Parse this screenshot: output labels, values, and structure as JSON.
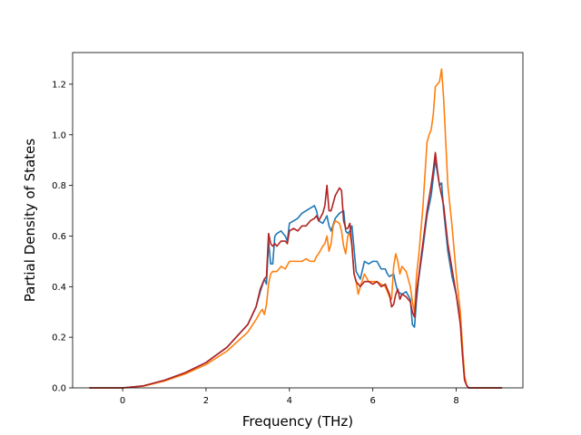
{
  "chart_data": {
    "type": "line",
    "xlabel": "Frequency (THz)",
    "ylabel": "Partial Density of States",
    "xlim": [
      -1.2,
      9.6
    ],
    "ylim": [
      0.0,
      1.325
    ],
    "x_ticks": [
      0,
      2,
      4,
      6,
      8
    ],
    "x_tick_labels": [
      "0",
      "2",
      "4",
      "6",
      "8"
    ],
    "y_ticks": [
      0.0,
      0.2,
      0.4,
      0.6,
      0.8,
      1.0,
      1.2
    ],
    "y_tick_labels": [
      "0.0",
      "0.2",
      "0.4",
      "0.6",
      "0.8",
      "1.0",
      "1.2"
    ],
    "grid": false,
    "legend": "none",
    "series": [
      {
        "color": "#1f77b4",
        "points": [
          [
            -0.8,
            0
          ],
          [
            0,
            0
          ],
          [
            0.5,
            0.008
          ],
          [
            1.0,
            0.03
          ],
          [
            1.5,
            0.06
          ],
          [
            2.0,
            0.1
          ],
          [
            2.5,
            0.16
          ],
          [
            3.0,
            0.25
          ],
          [
            3.2,
            0.32
          ],
          [
            3.3,
            0.38
          ],
          [
            3.4,
            0.43
          ],
          [
            3.45,
            0.41
          ],
          [
            3.5,
            0.58
          ],
          [
            3.55,
            0.49
          ],
          [
            3.6,
            0.49
          ],
          [
            3.65,
            0.6
          ],
          [
            3.7,
            0.61
          ],
          [
            3.8,
            0.62
          ],
          [
            3.9,
            0.6
          ],
          [
            3.95,
            0.58
          ],
          [
            4.0,
            0.65
          ],
          [
            4.1,
            0.66
          ],
          [
            4.2,
            0.67
          ],
          [
            4.3,
            0.69
          ],
          [
            4.4,
            0.7
          ],
          [
            4.5,
            0.71
          ],
          [
            4.6,
            0.72
          ],
          [
            4.65,
            0.7
          ],
          [
            4.7,
            0.66
          ],
          [
            4.8,
            0.65
          ],
          [
            4.9,
            0.68
          ],
          [
            4.95,
            0.64
          ],
          [
            5.0,
            0.62
          ],
          [
            5.1,
            0.67
          ],
          [
            5.2,
            0.69
          ],
          [
            5.3,
            0.7
          ],
          [
            5.35,
            0.62
          ],
          [
            5.4,
            0.61
          ],
          [
            5.45,
            0.62
          ],
          [
            5.5,
            0.64
          ],
          [
            5.6,
            0.46
          ],
          [
            5.7,
            0.43
          ],
          [
            5.8,
            0.5
          ],
          [
            5.9,
            0.49
          ],
          [
            6.0,
            0.5
          ],
          [
            6.1,
            0.5
          ],
          [
            6.2,
            0.47
          ],
          [
            6.3,
            0.47
          ],
          [
            6.35,
            0.45
          ],
          [
            6.4,
            0.44
          ],
          [
            6.5,
            0.45
          ],
          [
            6.55,
            0.41
          ],
          [
            6.6,
            0.38
          ],
          [
            6.7,
            0.37
          ],
          [
            6.8,
            0.38
          ],
          [
            6.9,
            0.35
          ],
          [
            6.95,
            0.25
          ],
          [
            7.0,
            0.24
          ],
          [
            7.05,
            0.35
          ],
          [
            7.1,
            0.43
          ],
          [
            7.2,
            0.55
          ],
          [
            7.3,
            0.68
          ],
          [
            7.4,
            0.76
          ],
          [
            7.45,
            0.83
          ],
          [
            7.5,
            0.9
          ],
          [
            7.55,
            0.85
          ],
          [
            7.6,
            0.8
          ],
          [
            7.65,
            0.81
          ],
          [
            7.7,
            0.7
          ],
          [
            7.8,
            0.54
          ],
          [
            7.9,
            0.44
          ],
          [
            8.0,
            0.37
          ],
          [
            8.1,
            0.27
          ],
          [
            8.15,
            0.15
          ],
          [
            8.2,
            0.04
          ],
          [
            8.25,
            0.01
          ],
          [
            8.3,
            0
          ],
          [
            9.1,
            0
          ]
        ]
      },
      {
        "color": "#ff7f0e",
        "points": [
          [
            -0.8,
            0
          ],
          [
            0,
            0
          ],
          [
            0.5,
            0.007
          ],
          [
            1.0,
            0.027
          ],
          [
            1.5,
            0.055
          ],
          [
            2.0,
            0.092
          ],
          [
            2.5,
            0.145
          ],
          [
            3.0,
            0.22
          ],
          [
            3.2,
            0.27
          ],
          [
            3.3,
            0.3
          ],
          [
            3.35,
            0.31
          ],
          [
            3.4,
            0.29
          ],
          [
            3.45,
            0.33
          ],
          [
            3.5,
            0.41
          ],
          [
            3.55,
            0.45
          ],
          [
            3.6,
            0.46
          ],
          [
            3.7,
            0.46
          ],
          [
            3.75,
            0.47
          ],
          [
            3.8,
            0.48
          ],
          [
            3.9,
            0.47
          ],
          [
            4.0,
            0.5
          ],
          [
            4.1,
            0.5
          ],
          [
            4.2,
            0.5
          ],
          [
            4.3,
            0.5
          ],
          [
            4.4,
            0.51
          ],
          [
            4.5,
            0.5
          ],
          [
            4.6,
            0.5
          ],
          [
            4.65,
            0.52
          ],
          [
            4.7,
            0.53
          ],
          [
            4.8,
            0.56
          ],
          [
            4.85,
            0.57
          ],
          [
            4.9,
            0.6
          ],
          [
            4.95,
            0.54
          ],
          [
            5.0,
            0.57
          ],
          [
            5.05,
            0.64
          ],
          [
            5.1,
            0.66
          ],
          [
            5.2,
            0.65
          ],
          [
            5.25,
            0.62
          ],
          [
            5.3,
            0.56
          ],
          [
            5.35,
            0.53
          ],
          [
            5.4,
            0.6
          ],
          [
            5.45,
            0.61
          ],
          [
            5.5,
            0.56
          ],
          [
            5.55,
            0.45
          ],
          [
            5.6,
            0.42
          ],
          [
            5.65,
            0.37
          ],
          [
            5.7,
            0.4
          ],
          [
            5.8,
            0.45
          ],
          [
            5.9,
            0.42
          ],
          [
            6.0,
            0.42
          ],
          [
            6.1,
            0.42
          ],
          [
            6.2,
            0.41
          ],
          [
            6.3,
            0.4
          ],
          [
            6.4,
            0.36
          ],
          [
            6.45,
            0.35
          ],
          [
            6.5,
            0.48
          ],
          [
            6.55,
            0.53
          ],
          [
            6.6,
            0.5
          ],
          [
            6.65,
            0.45
          ],
          [
            6.7,
            0.48
          ],
          [
            6.8,
            0.46
          ],
          [
            6.85,
            0.43
          ],
          [
            6.9,
            0.4
          ],
          [
            6.95,
            0.34
          ],
          [
            7.0,
            0.3
          ],
          [
            7.05,
            0.45
          ],
          [
            7.1,
            0.52
          ],
          [
            7.2,
            0.71
          ],
          [
            7.3,
            0.97
          ],
          [
            7.35,
            1.0
          ],
          [
            7.4,
            1.02
          ],
          [
            7.45,
            1.08
          ],
          [
            7.5,
            1.19
          ],
          [
            7.55,
            1.2
          ],
          [
            7.6,
            1.21
          ],
          [
            7.65,
            1.26
          ],
          [
            7.7,
            1.14
          ],
          [
            7.75,
            0.97
          ],
          [
            7.8,
            0.8
          ],
          [
            7.9,
            0.64
          ],
          [
            8.0,
            0.45
          ],
          [
            8.1,
            0.3
          ],
          [
            8.15,
            0.17
          ],
          [
            8.2,
            0.05
          ],
          [
            8.25,
            0.01
          ],
          [
            8.3,
            0
          ],
          [
            9.1,
            0
          ]
        ]
      },
      {
        "color": "#b22222",
        "points": [
          [
            -0.8,
            0
          ],
          [
            0,
            0
          ],
          [
            0.5,
            0.008
          ],
          [
            1.0,
            0.03
          ],
          [
            1.5,
            0.06
          ],
          [
            2.0,
            0.1
          ],
          [
            2.5,
            0.16
          ],
          [
            3.0,
            0.25
          ],
          [
            3.2,
            0.32
          ],
          [
            3.3,
            0.39
          ],
          [
            3.4,
            0.43
          ],
          [
            3.45,
            0.44
          ],
          [
            3.5,
            0.61
          ],
          [
            3.55,
            0.57
          ],
          [
            3.6,
            0.56
          ],
          [
            3.65,
            0.57
          ],
          [
            3.7,
            0.56
          ],
          [
            3.8,
            0.58
          ],
          [
            3.9,
            0.58
          ],
          [
            3.95,
            0.57
          ],
          [
            4.0,
            0.62
          ],
          [
            4.1,
            0.63
          ],
          [
            4.2,
            0.62
          ],
          [
            4.3,
            0.64
          ],
          [
            4.4,
            0.64
          ],
          [
            4.5,
            0.66
          ],
          [
            4.6,
            0.67
          ],
          [
            4.65,
            0.68
          ],
          [
            4.7,
            0.66
          ],
          [
            4.8,
            0.69
          ],
          [
            4.85,
            0.72
          ],
          [
            4.9,
            0.8
          ],
          [
            4.95,
            0.7
          ],
          [
            5.0,
            0.7
          ],
          [
            5.1,
            0.76
          ],
          [
            5.2,
            0.79
          ],
          [
            5.25,
            0.78
          ],
          [
            5.3,
            0.66
          ],
          [
            5.35,
            0.63
          ],
          [
            5.4,
            0.63
          ],
          [
            5.45,
            0.65
          ],
          [
            5.5,
            0.56
          ],
          [
            5.55,
            0.45
          ],
          [
            5.6,
            0.42
          ],
          [
            5.7,
            0.4
          ],
          [
            5.8,
            0.42
          ],
          [
            5.9,
            0.42
          ],
          [
            6.0,
            0.41
          ],
          [
            6.1,
            0.42
          ],
          [
            6.2,
            0.4
          ],
          [
            6.3,
            0.41
          ],
          [
            6.4,
            0.37
          ],
          [
            6.45,
            0.32
          ],
          [
            6.5,
            0.33
          ],
          [
            6.55,
            0.37
          ],
          [
            6.6,
            0.39
          ],
          [
            6.65,
            0.35
          ],
          [
            6.7,
            0.37
          ],
          [
            6.8,
            0.36
          ],
          [
            6.9,
            0.34
          ],
          [
            6.95,
            0.3
          ],
          [
            7.0,
            0.28
          ],
          [
            7.05,
            0.38
          ],
          [
            7.1,
            0.44
          ],
          [
            7.2,
            0.57
          ],
          [
            7.3,
            0.7
          ],
          [
            7.4,
            0.8
          ],
          [
            7.45,
            0.86
          ],
          [
            7.5,
            0.93
          ],
          [
            7.55,
            0.86
          ],
          [
            7.6,
            0.8
          ],
          [
            7.7,
            0.72
          ],
          [
            7.8,
            0.57
          ],
          [
            7.9,
            0.47
          ],
          [
            8.0,
            0.37
          ],
          [
            8.1,
            0.25
          ],
          [
            8.15,
            0.13
          ],
          [
            8.2,
            0.03
          ],
          [
            8.25,
            0.01
          ],
          [
            8.3,
            0
          ],
          [
            9.1,
            0
          ]
        ]
      }
    ]
  }
}
